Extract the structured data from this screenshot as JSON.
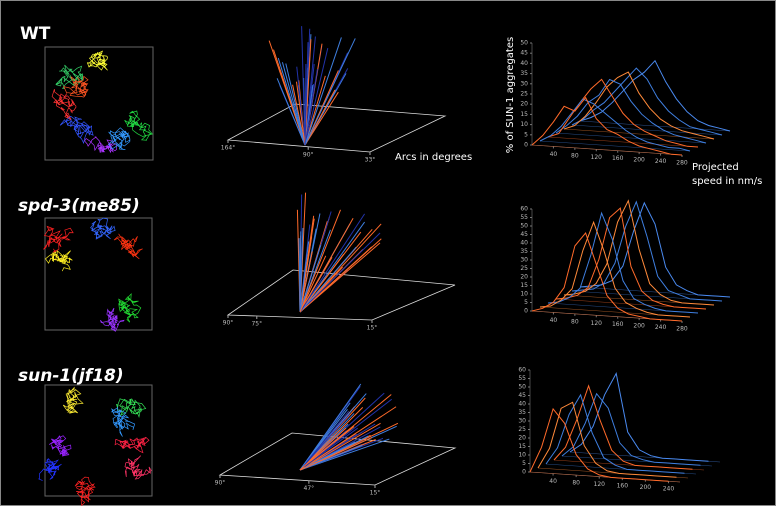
{
  "rows": [
    {
      "label": "WT"
    },
    {
      "label": "spd-3(me85)"
    },
    {
      "label": "sun-1(jf18)"
    }
  ],
  "arc_panels": [
    {
      "axis_label": "Arcs in degrees",
      "range": [
        164,
        33
      ],
      "ticks": [
        {
          "value": 164,
          "label": "164°"
        },
        {
          "value": 90,
          "label": "90°"
        },
        {
          "value": 33,
          "label": "33°"
        }
      ]
    },
    {
      "range": [
        90,
        15
      ],
      "ticks": [
        {
          "value": 90,
          "label": "90°"
        },
        {
          "value": 75,
          "label": "75°"
        },
        {
          "value": 15,
          "label": "15°"
        }
      ]
    },
    {
      "range": [
        90,
        15
      ],
      "ticks": [
        {
          "value": 90,
          "label": "90°"
        },
        {
          "value": 47,
          "label": "47°"
        },
        {
          "value": 15,
          "label": "15°"
        }
      ]
    }
  ],
  "chart_data": [
    {
      "type": "waterfall",
      "y_label": "% of SUN-1 aggregates",
      "x_label": [
        "Projected",
        "speed in nm/s"
      ],
      "x": [
        0,
        20,
        40,
        60,
        80,
        100,
        120,
        140,
        160,
        180,
        200,
        220,
        240,
        260,
        280
      ],
      "xlim": [
        0,
        280
      ],
      "xticks": [
        40,
        80,
        120,
        160,
        200,
        240,
        280
      ],
      "ylim": [
        0,
        50
      ],
      "yticks": [
        0,
        5,
        10,
        15,
        20,
        25,
        30,
        35,
        40,
        45,
        50
      ],
      "series": [
        {
          "color": "#ff6a2a",
          "values": [
            0,
            5,
            12,
            20,
            18,
            25,
            15,
            10,
            8,
            5,
            3,
            2,
            1,
            0,
            0
          ]
        },
        {
          "color": "#3f7fe0",
          "values": [
            0,
            3,
            8,
            15,
            22,
            20,
            16,
            12,
            8,
            5,
            3,
            2,
            1,
            1,
            0
          ]
        },
        {
          "color": "#ff6a2a",
          "values": [
            0,
            2,
            10,
            18,
            25,
            30,
            22,
            14,
            9,
            6,
            4,
            2,
            1,
            0,
            0
          ]
        },
        {
          "color": "#3f7fe0",
          "values": [
            0,
            4,
            9,
            16,
            20,
            28,
            26,
            18,
            12,
            8,
            5,
            3,
            2,
            1,
            0
          ]
        },
        {
          "color": "#ff8a3a",
          "values": [
            0,
            2,
            7,
            14,
            22,
            27,
            30,
            20,
            13,
            8,
            5,
            3,
            2,
            1,
            0
          ]
        },
        {
          "color": "#3f7fe0",
          "values": [
            0,
            3,
            8,
            12,
            18,
            24,
            30,
            25,
            16,
            10,
            6,
            3,
            2,
            1,
            0
          ]
        },
        {
          "color": "#4a8af0",
          "values": [
            0,
            2,
            5,
            10,
            16,
            22,
            26,
            32,
            22,
            14,
            8,
            4,
            2,
            1,
            0
          ]
        }
      ]
    },
    {
      "type": "waterfall",
      "x": [
        0,
        20,
        40,
        60,
        80,
        100,
        120,
        140,
        160,
        180,
        200,
        220,
        240,
        260,
        280
      ],
      "xlim": [
        0,
        280
      ],
      "xticks": [
        40,
        80,
        120,
        160,
        200,
        240,
        280
      ],
      "ylim": [
        0,
        60
      ],
      "yticks": [
        0,
        5,
        10,
        15,
        20,
        25,
        30,
        35,
        40,
        45,
        50,
        55,
        60
      ],
      "series": [
        {
          "color": "#ff6a2a",
          "values": [
            0,
            2,
            6,
            15,
            40,
            48,
            30,
            12,
            5,
            2,
            1,
            0,
            0,
            0,
            0
          ]
        },
        {
          "color": "#ff8a3a",
          "values": [
            0,
            1,
            5,
            12,
            35,
            52,
            35,
            14,
            6,
            3,
            1,
            0,
            0,
            0,
            0
          ]
        },
        {
          "color": "#3f7fe0",
          "values": [
            0,
            1,
            4,
            10,
            30,
            55,
            40,
            16,
            6,
            3,
            1,
            0,
            0,
            0,
            0
          ]
        },
        {
          "color": "#ff6a2a",
          "values": [
            0,
            1,
            3,
            8,
            25,
            50,
            56,
            22,
            8,
            3,
            1,
            0,
            0,
            0,
            0
          ]
        },
        {
          "color": "#ff8a3a",
          "values": [
            0,
            1,
            3,
            8,
            20,
            45,
            58,
            30,
            10,
            4,
            1,
            0,
            0,
            0,
            0
          ]
        },
        {
          "color": "#3f7fe0",
          "values": [
            0,
            1,
            2,
            6,
            18,
            40,
            55,
            35,
            12,
            4,
            2,
            0,
            0,
            0,
            0
          ]
        },
        {
          "color": "#4a8af0",
          "values": [
            0,
            1,
            2,
            5,
            14,
            35,
            52,
            40,
            15,
            5,
            2,
            0,
            0,
            0,
            0
          ]
        }
      ]
    },
    {
      "type": "waterfall",
      "x": [
        0,
        20,
        40,
        60,
        80,
        100,
        120,
        140,
        160,
        180,
        200,
        220,
        240
      ],
      "xlim": [
        0,
        260
      ],
      "xticks": [
        40,
        80,
        120,
        160,
        200,
        240
      ],
      "ylim": [
        0,
        60
      ],
      "yticks": [
        0,
        5,
        10,
        15,
        20,
        25,
        30,
        35,
        40,
        45,
        50,
        55,
        60
      ],
      "series": [
        {
          "color": "#ff6a2a",
          "values": [
            0,
            15,
            38,
            30,
            12,
            4,
            1,
            0,
            0,
            0,
            0,
            0,
            0
          ]
        },
        {
          "color": "#ff8a3a",
          "values": [
            0,
            12,
            36,
            40,
            15,
            5,
            1,
            0,
            0,
            0,
            0,
            0,
            0
          ]
        },
        {
          "color": "#3f7fe0",
          "values": [
            0,
            10,
            30,
            42,
            20,
            6,
            2,
            0,
            0,
            0,
            0,
            0,
            0
          ]
        },
        {
          "color": "#ff6a2a",
          "values": [
            0,
            8,
            25,
            45,
            25,
            8,
            2,
            0,
            0,
            0,
            0,
            0,
            0
          ]
        },
        {
          "color": "#3f7fe0",
          "values": [
            0,
            6,
            20,
            38,
            30,
            10,
            3,
            1,
            0,
            0,
            0,
            0,
            0
          ]
        },
        {
          "color": "#4a8af0",
          "values": [
            0,
            5,
            16,
            35,
            48,
            14,
            4,
            1,
            0,
            0,
            0,
            0,
            0
          ]
        }
      ]
    }
  ]
}
